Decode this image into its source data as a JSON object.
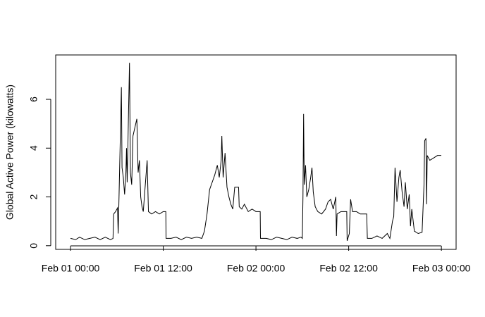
{
  "chart_data": {
    "type": "line",
    "ylabel": "Global Active Power (kilowatts)",
    "color": "#000000",
    "x": [
      "Feb 01 00:00",
      "Feb 01 00:40",
      "Feb 01 01:10",
      "Feb 01 01:50",
      "Feb 01 02:30",
      "Feb 01 03:10",
      "Feb 01 03:50",
      "Feb 01 04:30",
      "Feb 01 05:10",
      "Feb 01 05:30",
      "Feb 01 05:35",
      "Feb 01 05:50",
      "Feb 01 06:05",
      "Feb 01 06:10",
      "Feb 01 06:15",
      "Feb 01 06:35",
      "Feb 01 06:40",
      "Feb 01 06:50",
      "Feb 01 07:00",
      "Feb 01 07:10",
      "Feb 01 07:15",
      "Feb 01 07:20",
      "Feb 01 07:38",
      "Feb 01 07:45",
      "Feb 01 07:55",
      "Feb 01 08:05",
      "Feb 01 08:35",
      "Feb 01 08:45",
      "Feb 01 08:55",
      "Feb 01 09:05",
      "Feb 01 09:15",
      "Feb 01 09:25",
      "Feb 01 09:55",
      "Feb 01 10:05",
      "Feb 01 10:30",
      "Feb 01 11:00",
      "Feb 01 11:30",
      "Feb 01 12:00",
      "Feb 01 12:20",
      "Feb 01 12:22",
      "Feb 01 13:00",
      "Feb 01 13:40",
      "Feb 01 14:20",
      "Feb 01 15:00",
      "Feb 01 15:40",
      "Feb 01 16:20",
      "Feb 01 17:00",
      "Feb 01 17:20",
      "Feb 01 17:40",
      "Feb 01 18:00",
      "Feb 01 18:20",
      "Feb 01 18:40",
      "Feb 01 19:00",
      "Feb 01 19:15",
      "Feb 01 19:30",
      "Feb 01 19:35",
      "Feb 01 19:45",
      "Feb 01 20:00",
      "Feb 01 20:15",
      "Feb 01 20:30",
      "Feb 01 20:45",
      "Feb 01 21:00",
      "Feb 01 21:15",
      "Feb 01 21:45",
      "Feb 01 21:50",
      "Feb 01 22:10",
      "Feb 01 22:30",
      "Feb 01 23:00",
      "Feb 01 23:30",
      "Feb 02 00:00",
      "Feb 02 00:33",
      "Feb 02 00:35",
      "Feb 02 01:20",
      "Feb 02 02:00",
      "Feb 02 02:40",
      "Feb 02 03:20",
      "Feb 02 04:00",
      "Feb 02 04:40",
      "Feb 02 05:20",
      "Feb 02 05:50",
      "Feb 02 06:00",
      "Feb 02 06:05",
      "Feb 02 06:10",
      "Feb 02 06:15",
      "Feb 02 06:25",
      "Feb 02 06:35",
      "Feb 02 06:50",
      "Feb 02 07:05",
      "Feb 02 07:15",
      "Feb 02 07:25",
      "Feb 02 07:40",
      "Feb 02 08:00",
      "Feb 02 08:30",
      "Feb 02 09:00",
      "Feb 02 09:20",
      "Feb 02 09:40",
      "Feb 02 10:00",
      "Feb 02 10:20",
      "Feb 02 10:25",
      "Feb 02 10:30",
      "Feb 02 11:00",
      "Feb 02 11:45",
      "Feb 02 11:48",
      "Feb 02 12:05",
      "Feb 02 12:15",
      "Feb 02 12:30",
      "Feb 02 13:00",
      "Feb 02 13:30",
      "Feb 02 14:20",
      "Feb 02 14:25",
      "Feb 02 15:00",
      "Feb 02 15:40",
      "Feb 02 16:20",
      "Feb 02 17:00",
      "Feb 02 17:20",
      "Feb 02 17:40",
      "Feb 02 17:50",
      "Feb 02 18:00",
      "Feb 02 18:15",
      "Feb 02 18:30",
      "Feb 02 18:40",
      "Feb 02 18:55",
      "Feb 02 19:10",
      "Feb 02 19:20",
      "Feb 02 19:35",
      "Feb 02 19:50",
      "Feb 02 20:00",
      "Feb 02 20:10",
      "Feb 02 20:30",
      "Feb 02 21:00",
      "Feb 02 21:30",
      "Feb 02 21:45",
      "Feb 02 21:50",
      "Feb 02 22:00",
      "Feb 02 22:05",
      "Feb 02 22:10",
      "Feb 02 22:30",
      "Feb 02 23:00",
      "Feb 02 23:30",
      "Feb 02 23:59"
    ],
    "values": [
      0.3,
      0.25,
      0.35,
      0.25,
      0.3,
      0.35,
      0.25,
      0.35,
      0.25,
      0.3,
      1.3,
      1.4,
      1.55,
      0.5,
      1.6,
      6.5,
      3.2,
      2.8,
      2.1,
      3.0,
      4.0,
      2.6,
      7.5,
      3.0,
      2.5,
      4.5,
      5.2,
      3.0,
      3.5,
      2.0,
      1.6,
      1.4,
      3.5,
      1.4,
      1.3,
      1.4,
      1.3,
      1.4,
      1.4,
      0.3,
      0.3,
      0.35,
      0.25,
      0.35,
      0.3,
      0.35,
      0.3,
      0.6,
      1.3,
      2.3,
      2.6,
      2.9,
      3.3,
      2.8,
      3.5,
      4.5,
      2.8,
      3.8,
      2.4,
      2.0,
      1.7,
      1.5,
      2.4,
      2.4,
      1.6,
      1.5,
      1.7,
      1.4,
      1.5,
      1.4,
      1.4,
      0.3,
      0.3,
      0.25,
      0.35,
      0.3,
      0.25,
      0.35,
      0.3,
      0.35,
      0.3,
      2.0,
      5.4,
      2.5,
      3.3,
      2.0,
      2.3,
      2.8,
      3.2,
      2.2,
      1.6,
      1.4,
      1.3,
      1.5,
      1.8,
      1.9,
      1.5,
      2.0,
      0.4,
      1.3,
      1.4,
      1.4,
      0.2,
      0.5,
      1.9,
      1.4,
      1.4,
      1.3,
      1.3,
      0.3,
      0.3,
      0.4,
      0.3,
      0.5,
      0.3,
      1.0,
      1.2,
      3.2,
      1.8,
      2.8,
      3.1,
      2.2,
      1.6,
      2.6,
      1.5,
      2.1,
      0.8,
      1.5,
      0.6,
      0.5,
      0.55,
      2.5,
      4.3,
      4.4,
      1.7,
      3.7,
      3.5,
      3.6,
      3.7,
      3.7
    ],
    "ylim": [
      -0.15,
      7.82
    ],
    "yticks": [
      0,
      2,
      4,
      6
    ],
    "xticks": [
      "Feb 01 00:00",
      "Feb 01 12:00",
      "Feb 02 00:00",
      "Feb 02 12:00",
      "Feb 03 00:00"
    ]
  }
}
